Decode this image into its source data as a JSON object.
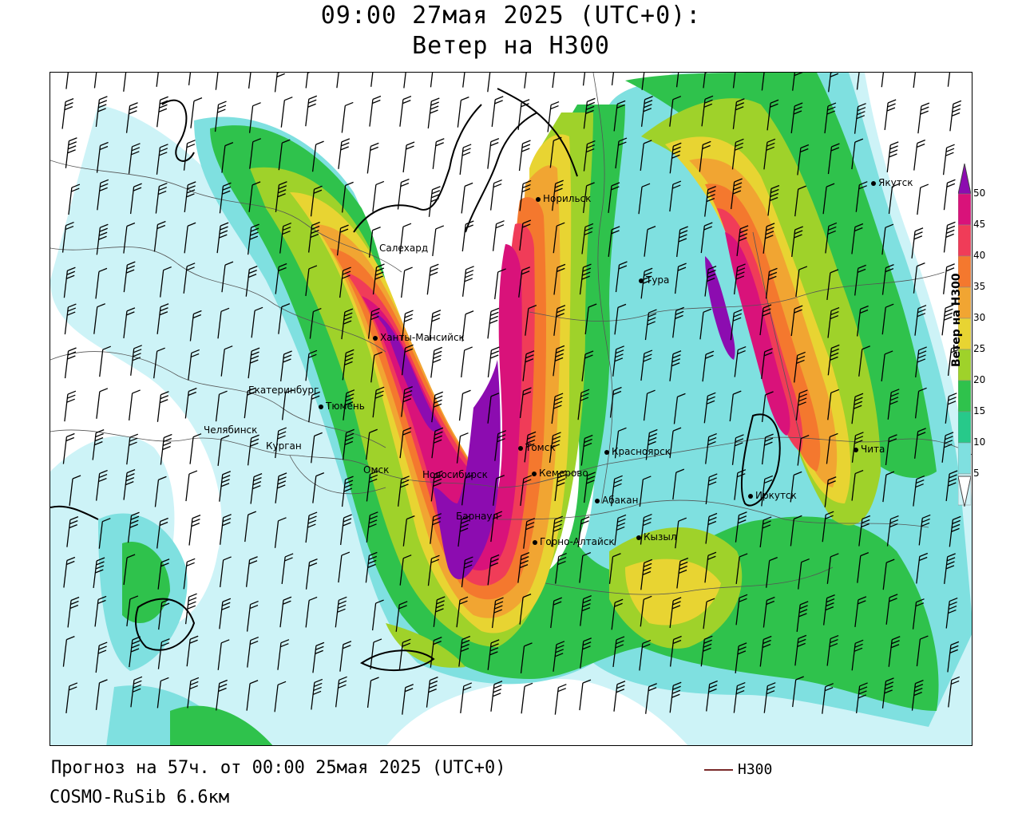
{
  "title": {
    "line1": "09:00 27мая 2025 (UTC+0):",
    "line2": "Ветер на H300"
  },
  "footer": {
    "forecast": "Прогноз на 57ч. от 00:00 25мая 2025 (UTC+0)",
    "model": "COSMO-RuSib 6.6км"
  },
  "legend": {
    "label": "H300",
    "line_color": "#7a2a2a"
  },
  "colorbar": {
    "title": "Ветер на H300",
    "ticks": [
      "50",
      "45",
      "40",
      "35",
      "30",
      "25",
      "20",
      "15",
      "10",
      "5"
    ],
    "colors": [
      "#8c0cb0",
      "#d9127a",
      "#f03c58",
      "#f4782e",
      "#f1a532",
      "#e8d432",
      "#9fd22a",
      "#2fc24c",
      "#27c98a",
      "#7fe0e0",
      "#cdf3f7",
      "#ffffff"
    ]
  },
  "cities": [
    {
      "name": "Норильск",
      "icon": "city-dot"
    },
    {
      "name": "Якутск",
      "icon": "city-dot"
    },
    {
      "name": "Салехард",
      "icon": "city-dot"
    },
    {
      "name": "Тура",
      "icon": "city-dot"
    },
    {
      "name": "Ханты-Мансийск",
      "icon": "city-dot"
    },
    {
      "name": "Екатеринбург",
      "icon": "city-dot"
    },
    {
      "name": "Тюмень",
      "icon": "city-dot"
    },
    {
      "name": "Челябинск",
      "icon": "city-dot"
    },
    {
      "name": "Курган",
      "icon": "city-dot"
    },
    {
      "name": "Омск",
      "icon": "city-dot"
    },
    {
      "name": "Новосибирск",
      "icon": "city-dot"
    },
    {
      "name": "Томск",
      "icon": "city-dot"
    },
    {
      "name": "Кемерово",
      "icon": "city-dot"
    },
    {
      "name": "Красноярск",
      "icon": "city-dot"
    },
    {
      "name": "Абакан",
      "icon": "city-dot"
    },
    {
      "name": "Барнаул",
      "icon": "city-dot"
    },
    {
      "name": "Горно-Алтайск",
      "icon": "city-dot"
    },
    {
      "name": "Кызыл",
      "icon": "city-dot"
    },
    {
      "name": "Иркутск",
      "icon": "city-dot"
    },
    {
      "name": "Чита",
      "icon": "city-dot"
    }
  ]
}
